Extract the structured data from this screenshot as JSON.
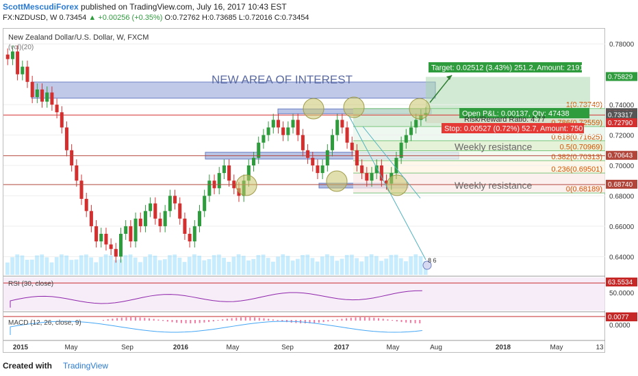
{
  "header": {
    "author": "ScottMescudiForex",
    "published": " published on TradingView.com, July 16, 2017 10:43 EST",
    "symbol": "FX:NZDUSD, W",
    "last": "0.73454",
    "change": "▲ +0.00256 (+0.35%)",
    "ohlc": "O:0.72762 H:0.73685 L:0.72016 C:0.73454"
  },
  "legend": {
    "title": "New Zealand Dollar/U.S. Dollar, W, FXCM",
    "sub": "(vol)(20)"
  },
  "annotations": {
    "area_of_interest": "NEW AREA OF INTEREST",
    "weekly_resistance_1": "Weekly resistance",
    "weekly_resistance_2": "Weekly resistance",
    "target": "Target: 0.02512 (3.43%) 251.2, Amount: 2191.64",
    "open_pl": "Open P&L: 0.00137, Qty: 47438",
    "risk_reward": "Risk/Reward Ratio: 4.77",
    "stop": "Stop: 0.00527 (0.72%) 52.7, Amount: 750",
    "flag_label": "8 6"
  },
  "fib_levels": [
    {
      "label": "1(0.73749)",
      "price": 0.73749
    },
    {
      "label": "0.786(0.72559)",
      "price": 0.72559
    },
    {
      "label": "0.618(0.71625)",
      "price": 0.71625
    },
    {
      "label": "0.5(0.70969)",
      "price": 0.70969
    },
    {
      "label": "0.382(0.70313)",
      "price": 0.70313
    },
    {
      "label": "0.236(0.69501)",
      "price": 0.69501
    },
    {
      "label": "0(0.68189)",
      "price": 0.68189
    }
  ],
  "price_axis": {
    "ticks": [
      "0.78000",
      "0.74000",
      "0.72000",
      "0.70000",
      "0.68000",
      "0.66000",
      "0.64000"
    ],
    "tick_values": [
      0.78,
      0.74,
      0.72,
      0.7,
      0.68,
      0.66,
      0.64
    ],
    "tags": [
      {
        "text": "0.75829",
        "value": 0.75829,
        "color": "#2e9b3c"
      },
      {
        "text": "0.73454",
        "value": 0.73454,
        "color": "#555555"
      },
      {
        "text": "0.73320",
        "value": 0.7332,
        "color": "#d32f2f"
      },
      {
        "text": "0.73317",
        "value": 0.73317,
        "color": "#555555"
      },
      {
        "text": "0.72790",
        "value": 0.7279,
        "color": "#d32f2f"
      },
      {
        "text": "0.70643",
        "value": 0.70643,
        "color": "#b2453a"
      },
      {
        "text": "0.68740",
        "value": 0.6874,
        "color": "#b2453a"
      }
    ]
  },
  "rsi": {
    "label": "RSI (30, close)",
    "value_tag": "63.5534",
    "tick": "50.0000"
  },
  "macd": {
    "label": "MACD (12, 26, close, 9)",
    "value_tag": "0.0077",
    "tick": "0.0000"
  },
  "time_axis": {
    "labels": [
      "2015",
      "May",
      "Sep",
      "2016",
      "May",
      "Sep",
      "2017",
      "May",
      "Aug",
      "2018",
      "May",
      "13"
    ],
    "bold": [
      "2015",
      "2016",
      "2017",
      "2018"
    ]
  },
  "footer": {
    "created": "Created with",
    "brand": "TradingView"
  },
  "colors": {
    "up": "#2e9b3c",
    "down": "#d32f2f",
    "zone": "#8c9ed6",
    "fib_green": "#7bc67e",
    "target": "#2e9b3c",
    "stop": "#e53935"
  },
  "chart_data": {
    "type": "candlestick",
    "title": "New Zealand Dollar/U.S. Dollar, W, FXCM",
    "x_labels": [
      "2015",
      "May",
      "Sep",
      "2016",
      "May",
      "Sep",
      "2017",
      "May",
      "Aug",
      "2018",
      "May",
      "13"
    ],
    "ylim": [
      0.628,
      0.79
    ],
    "series_close": [
      0.77,
      0.775,
      0.76,
      0.765,
      0.755,
      0.745,
      0.75,
      0.742,
      0.748,
      0.74,
      0.735,
      0.725,
      0.71,
      0.7,
      0.69,
      0.678,
      0.67,
      0.66,
      0.65,
      0.655,
      0.648,
      0.645,
      0.64,
      0.655,
      0.66,
      0.65,
      0.665,
      0.66,
      0.67,
      0.675,
      0.665,
      0.66,
      0.67,
      0.68,
      0.675,
      0.665,
      0.655,
      0.65,
      0.66,
      0.67,
      0.68,
      0.69,
      0.685,
      0.695,
      0.7,
      0.69,
      0.685,
      0.68,
      0.69,
      0.7,
      0.705,
      0.715,
      0.72,
      0.725,
      0.73,
      0.725,
      0.72,
      0.725,
      0.73,
      0.72,
      0.71,
      0.705,
      0.7,
      0.695,
      0.7,
      0.71,
      0.72,
      0.73,
      0.725,
      0.715,
      0.71,
      0.7,
      0.695,
      0.69,
      0.695,
      0.7,
      0.69,
      0.688,
      0.695,
      0.705,
      0.715,
      0.72,
      0.725,
      0.73,
      0.733,
      0.7345
    ],
    "levels": {
      "new_area_of_interest": [
        0.747,
        0.754
      ],
      "weekly_resistance_1": 0.70643,
      "weekly_resistance_2": 0.6874,
      "target": 0.75829,
      "entry": 0.73317,
      "stop": 0.7279,
      "last": 0.73454
    }
  }
}
